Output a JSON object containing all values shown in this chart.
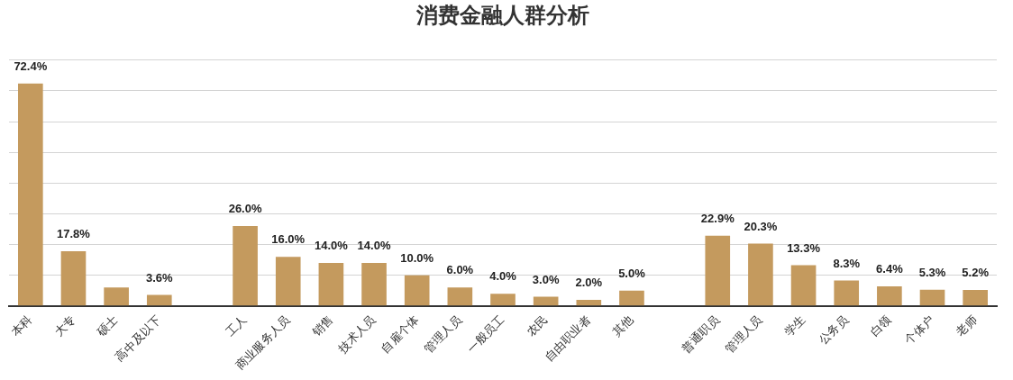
{
  "chart_data": {
    "type": "bar",
    "title": "消费金融人群分析",
    "categories": [
      "本科",
      "大专",
      "硕士",
      "高中及以下",
      null,
      "工人",
      "商业服务人员",
      "销售",
      "技术人员",
      "自雇个体",
      "管理人员",
      "一般员工",
      "农民",
      "自由职业者",
      "其他",
      null,
      "普通职员",
      "管理人员",
      "学生",
      "公务员",
      "白领",
      "个体户",
      "老师"
    ],
    "values": [
      72.4,
      17.8,
      6.0,
      3.6,
      null,
      26.0,
      16.0,
      14.0,
      14.0,
      10.0,
      6.0,
      4.0,
      3.0,
      2.0,
      5.0,
      null,
      22.9,
      20.3,
      13.3,
      8.3,
      6.4,
      5.3,
      5.2
    ],
    "value_labels": [
      "72.4%",
      "17.8%",
      null,
      "3.6%",
      null,
      "26.0%",
      "16.0%",
      "14.0%",
      "14.0%",
      "10.0%",
      "6.0%",
      "4.0%",
      "3.0%",
      "2.0%",
      "5.0%",
      null,
      "22.9%",
      "20.3%",
      "13.3%",
      "8.3%",
      "6.4%",
      "5.3%",
      "5.2%"
    ],
    "color": "#c49a5e",
    "ylim": [
      0,
      80
    ],
    "yticks": [
      {
        "value": 0,
        "label": null
      },
      {
        "value": 10,
        "label": null
      },
      {
        "value": 20,
        "label": null
      },
      {
        "value": 30,
        "label": null
      },
      {
        "value": 40,
        "label": null
      },
      {
        "value": 50,
        "label": null
      },
      {
        "value": 60,
        "label": null
      },
      {
        "value": 70,
        "label": null
      },
      {
        "value": 80,
        "label": null
      }
    ],
    "grid": "y",
    "tick_labels": "x",
    "legend": false
  }
}
